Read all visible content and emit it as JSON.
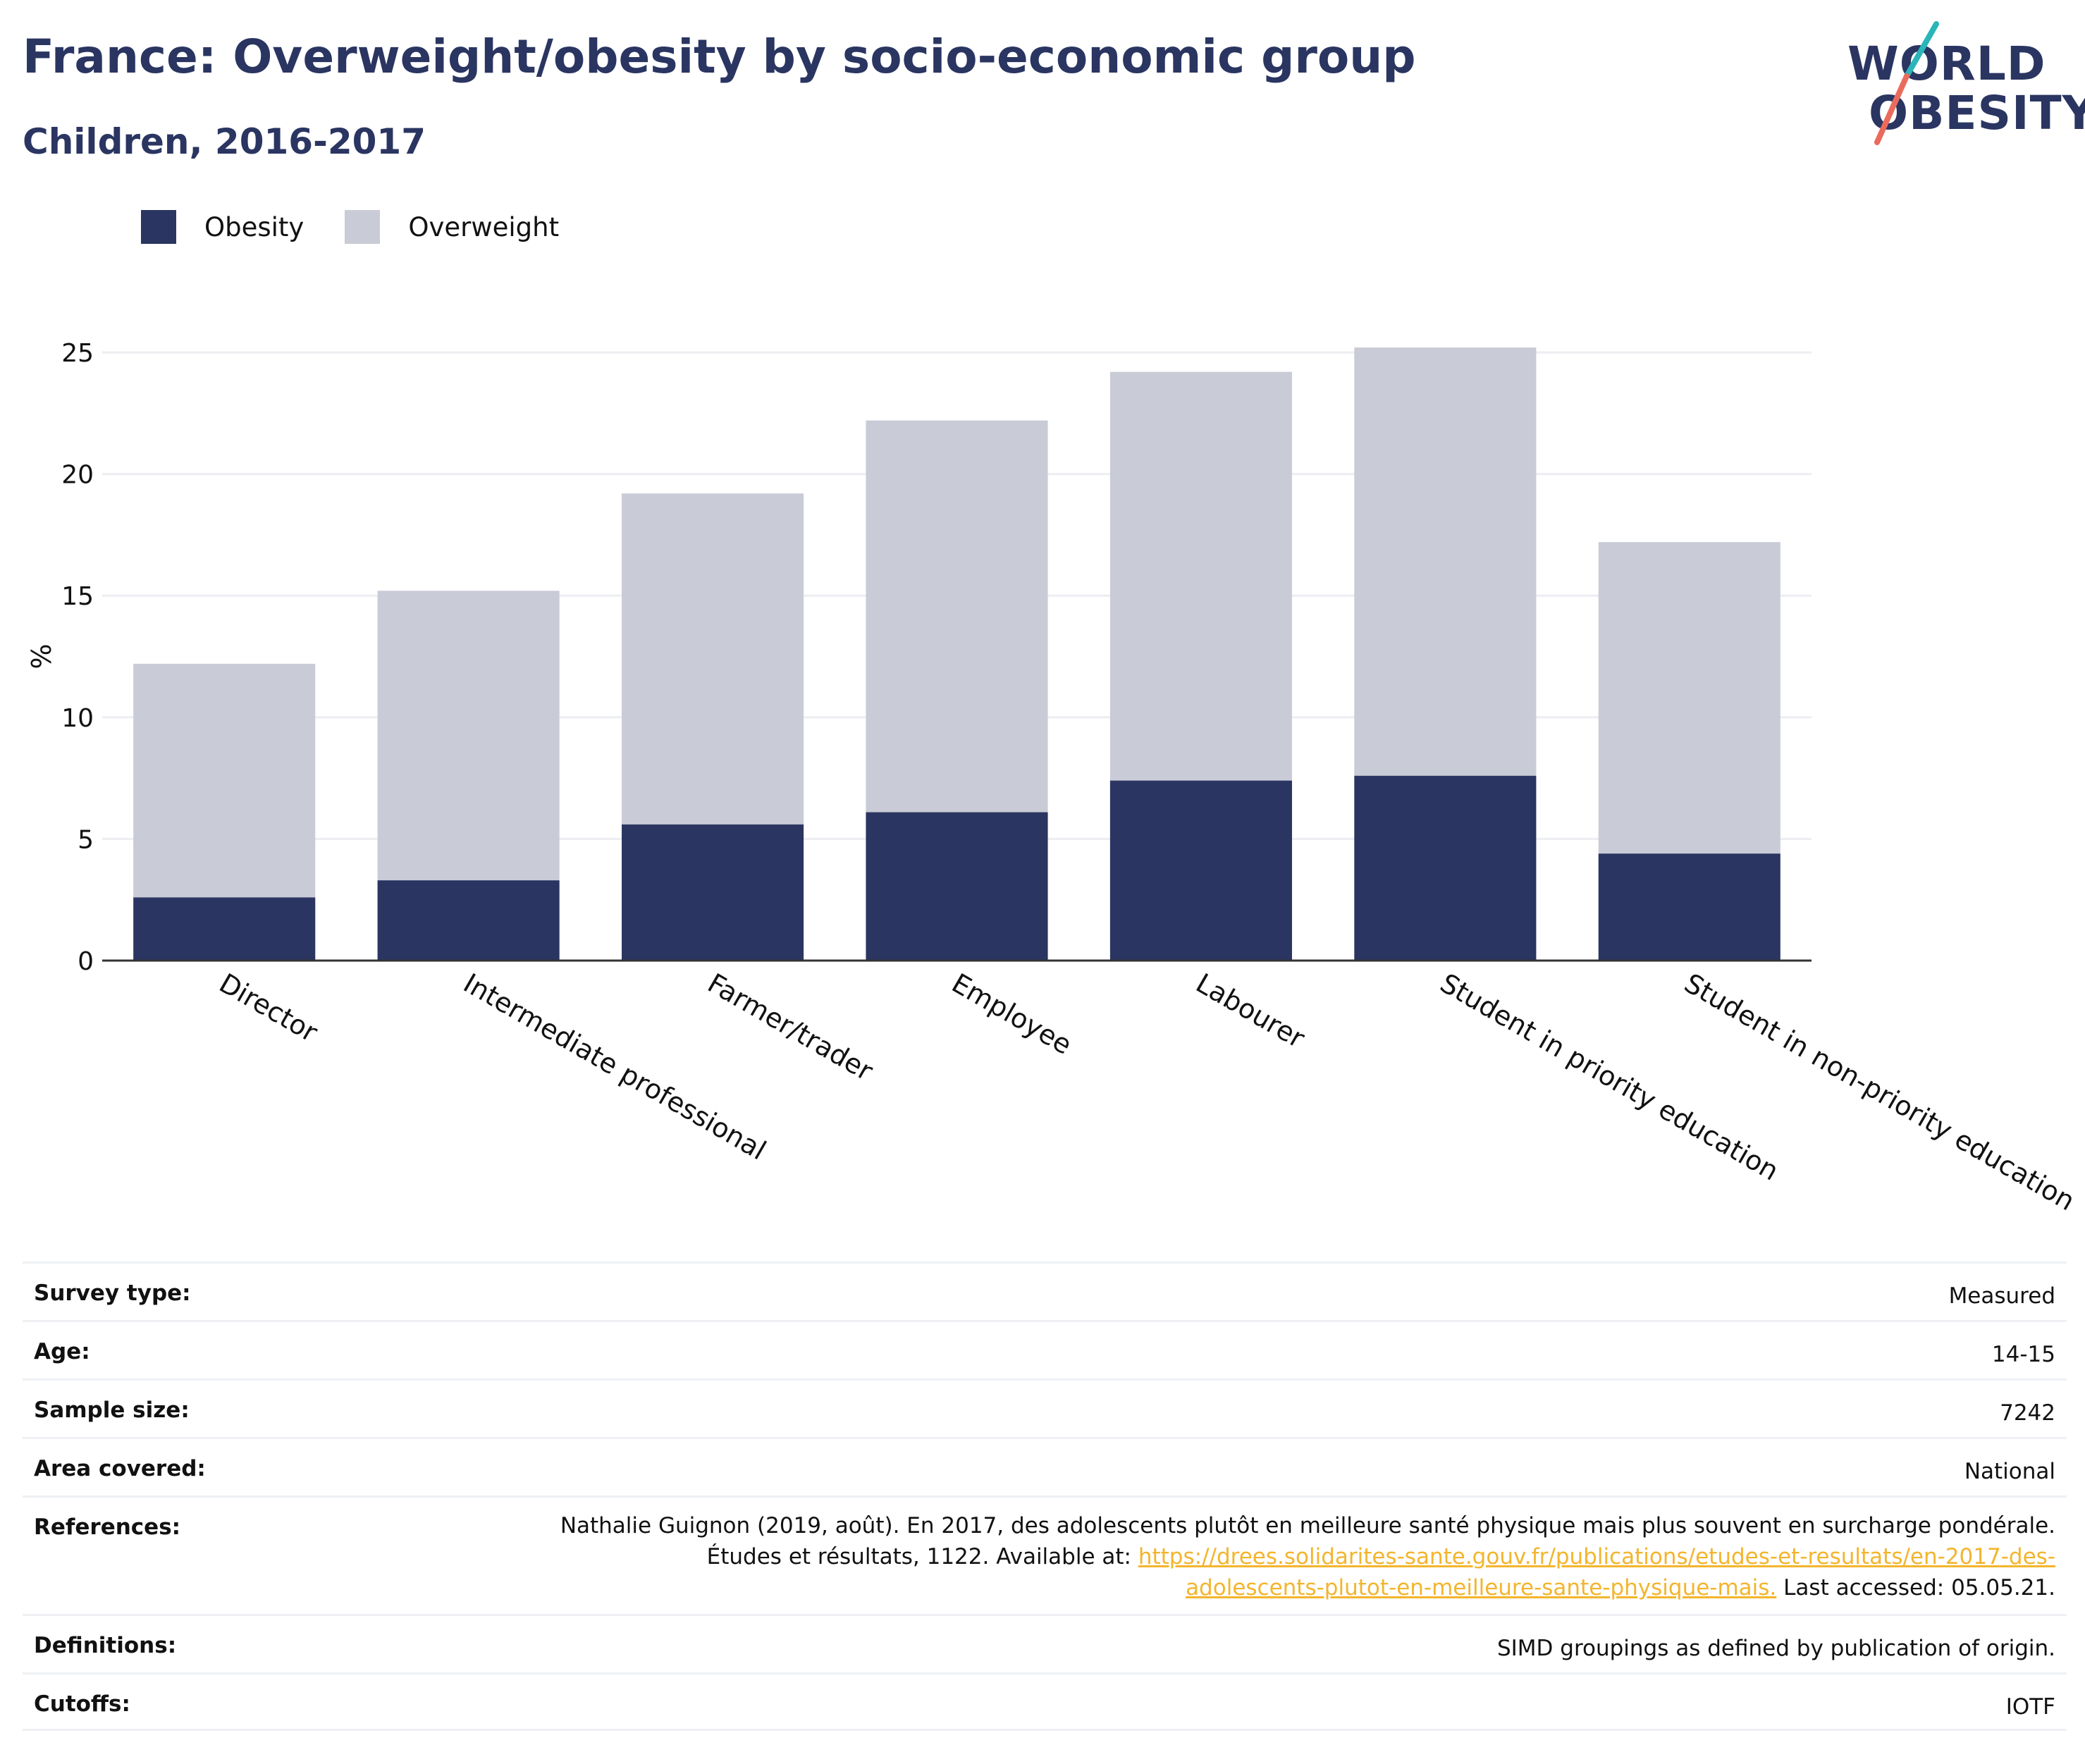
{
  "header": {
    "title": "France: Overweight/obesity by socio-economic group",
    "subtitle": "Children, 2016-2017"
  },
  "logo": {
    "line1": "WORLD",
    "line2": "OBESITY"
  },
  "colors": {
    "obesity": "#2a3561",
    "overweight": "#c9cbd6",
    "link": "#f3b52d",
    "brand": "#2a3561",
    "logo_teal": "#2bb5b8",
    "logo_coral": "#ea6b5c"
  },
  "legend": [
    {
      "label": "Obesity",
      "color": "#2a3561"
    },
    {
      "label": "Overweight",
      "color": "#c9cbd6"
    }
  ],
  "chart_data": {
    "type": "bar",
    "stacked": true,
    "categories": [
      "Director",
      "Intermediate professional",
      "Farmer/trader",
      "Employee",
      "Labourer",
      "Student in priority education",
      "Student in non-priority education"
    ],
    "series": [
      {
        "name": "Obesity",
        "values": [
          2.6,
          3.3,
          5.6,
          6.1,
          7.4,
          7.6,
          4.4
        ]
      },
      {
        "name": "Overweight",
        "values": [
          9.6,
          11.9,
          13.6,
          16.1,
          16.8,
          17.6,
          12.8
        ]
      }
    ],
    "title": "France: Overweight/obesity by socio-economic group",
    "subtitle": "Children, 2016-2017",
    "xlabel": "",
    "ylabel": "%",
    "ylim": [
      0,
      25
    ],
    "yticks": [
      0,
      5,
      10,
      15,
      20,
      25
    ],
    "grid": true,
    "legend_position": "top-left"
  },
  "meta": {
    "survey_type": {
      "label": "Survey type:",
      "value": "Measured"
    },
    "age": {
      "label": "Age:",
      "value": "14-15"
    },
    "sample_size": {
      "label": "Sample size:",
      "value": "7242"
    },
    "area": {
      "label": "Area covered:",
      "value": "National"
    },
    "references": {
      "label": "References:",
      "text1": "Nathalie Guignon (2019, août). En 2017, des adolescents plutôt en meilleure santé physique mais plus souvent en surcharge pondérale.",
      "text2": "Études et résultats, 1122. Available at: ",
      "link1": "https://drees.solidarites-sante.gouv.fr/publications/etudes-et-resultats/en-2017-des-",
      "link2": "adolescents-plutot-en-meilleure-sante-physique-mais.",
      "text3": " Last accessed: 05.05.21."
    },
    "definitions": {
      "label": "Definitions:",
      "value": "SIMD groupings as defined by publication of origin."
    },
    "cutoffs": {
      "label": "Cutoffs:",
      "value": "IOTF"
    }
  }
}
